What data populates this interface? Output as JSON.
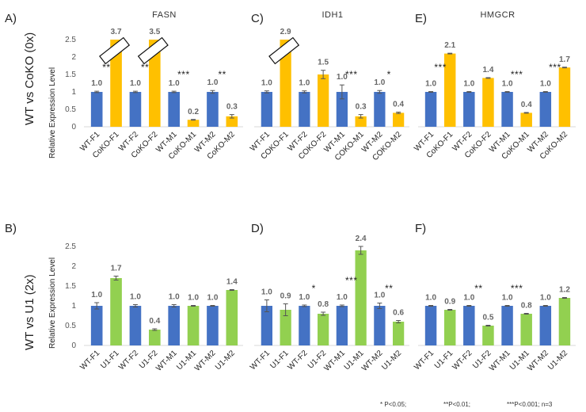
{
  "row_labels": [
    "WT vs CoKO (0x)",
    "WT vs U1 (2x)"
  ],
  "ylabel": "Relative Expression Level",
  "footnotes": [
    "* P<0.05;",
    "**P<0.01;",
    "***P<0.001; n=3"
  ],
  "colors": {
    "wt": "#4472C4",
    "coko": "#FFC000",
    "u1": "#92D050",
    "error": "#555555"
  },
  "chart_data": [
    {
      "type": "bar",
      "panel": "A)",
      "title": "FASN",
      "categories": [
        "WT-F1",
        "CoKO-F1",
        "WT-F2",
        "CoKO-F2",
        "WT-M1",
        "CoKO-M1",
        "WT-M2",
        "CoKO-M2"
      ],
      "values": [
        1.0,
        3.7,
        1.0,
        3.5,
        1.0,
        0.2,
        1.0,
        0.3
      ],
      "value_labels": [
        "1.0",
        "3.7",
        "1.0",
        "3.5",
        "1.0",
        "0.2",
        "1.0",
        "0.3"
      ],
      "errors": [
        0.02,
        0.03,
        0.02,
        0.05,
        0.02,
        0.01,
        0.04,
        0.05
      ],
      "groups": [
        "wt",
        "coko",
        "wt",
        "coko",
        "wt",
        "coko",
        "wt",
        "coko"
      ],
      "significance": [
        {
          "pair": 0,
          "stars": "**"
        },
        {
          "pair": 1,
          "stars": "**"
        },
        {
          "pair": 2,
          "stars": "***"
        },
        {
          "pair": 3,
          "stars": "**"
        }
      ],
      "ylim": [
        0,
        2.5
      ],
      "yticks": [
        "0",
        "0.5",
        "1",
        "1.5",
        "2",
        "2.5"
      ],
      "axis_broken": true
    },
    {
      "type": "bar",
      "panel": "C)",
      "title": "IDH1",
      "categories": [
        "WT-F1",
        "COKO-F1",
        "WT-F2",
        "COKO-F2",
        "WT-M1",
        "COKO-M1",
        "WT-M2",
        "COKO-M2"
      ],
      "values": [
        1.0,
        2.9,
        1.0,
        1.5,
        1.0,
        0.3,
        1.0,
        0.4
      ],
      "value_labels": [
        "1.0",
        "2.9",
        "1.0",
        "1.5",
        "1.0",
        "0.3",
        "1.0",
        "0.4"
      ],
      "errors": [
        0.03,
        0.0,
        0.03,
        0.12,
        0.2,
        0.05,
        0.04,
        0.02
      ],
      "groups": [
        "wt",
        "coko",
        "wt",
        "coko",
        "wt",
        "coko",
        "wt",
        "coko"
      ],
      "significance": [
        {
          "pair": 2,
          "stars": "***"
        },
        {
          "pair": 3,
          "stars": "*"
        }
      ],
      "ylim": [
        0,
        2.5
      ],
      "axis_broken": true
    },
    {
      "type": "bar",
      "panel": "E)",
      "title": "HMGCR",
      "categories": [
        "WT-F1",
        "CoKO-F1",
        "WT-F2",
        "CoKO-F2",
        "WT-M1",
        "CoKO-M1",
        "WT-M2",
        "CoKO-M2"
      ],
      "values": [
        1.0,
        2.1,
        1.0,
        1.4,
        1.0,
        0.4,
        1.0,
        1.7
      ],
      "value_labels": [
        "1.0",
        "2.1",
        "1.0",
        "1.4",
        "1.0",
        "0.4",
        "1.0",
        "1.7"
      ],
      "errors": [
        0.01,
        0.01,
        0.01,
        0.01,
        0.01,
        0.01,
        0.01,
        0.01
      ],
      "groups": [
        "wt",
        "coko",
        "wt",
        "coko",
        "wt",
        "coko",
        "wt",
        "coko"
      ],
      "significance": [
        {
          "pair": 0,
          "stars": "***"
        },
        {
          "pair": 2,
          "stars": "***"
        },
        {
          "pair": 3,
          "stars": "***"
        }
      ],
      "ylim": [
        0,
        2.5
      ]
    },
    {
      "type": "bar",
      "panel": "B)",
      "title": "",
      "categories": [
        "WT-F1",
        "U1-F1",
        "WT-F2",
        "U1-F2",
        "WT-M1",
        "U1-M1",
        "WT-M2",
        "U1-M2"
      ],
      "values": [
        1.0,
        1.7,
        1.0,
        0.4,
        1.0,
        1.0,
        1.0,
        1.4
      ],
      "value_labels": [
        "1.0",
        "1.7",
        "1.0",
        "0.4",
        "1.0",
        "1.0",
        "1.0",
        "1.4"
      ],
      "errors": [
        0.08,
        0.05,
        0.03,
        0.02,
        0.03,
        0.01,
        0.01,
        0.01
      ],
      "groups": [
        "wt",
        "u1",
        "wt",
        "u1",
        "wt",
        "u1",
        "wt",
        "u1"
      ],
      "significance": [],
      "ylim": [
        0,
        2.5
      ],
      "yticks": [
        "0",
        "0.5",
        "1",
        "1.5",
        "2",
        "2.5"
      ]
    },
    {
      "type": "bar",
      "panel": "D)",
      "title": "",
      "categories": [
        "WT-F1",
        "U1-F1",
        "WT-F2",
        "U1-F2",
        "WT-M1",
        "U1-M1",
        "WT-M2",
        "U1-M2"
      ],
      "values": [
        1.0,
        0.9,
        1.0,
        0.8,
        1.0,
        2.4,
        1.0,
        0.6
      ],
      "value_labels": [
        "1.0",
        "0.9",
        "1.0",
        "0.8",
        "1.0",
        "2.4",
        "1.0",
        "0.6"
      ],
      "errors": [
        0.15,
        0.15,
        0.02,
        0.04,
        0.02,
        0.1,
        0.07,
        0.03
      ],
      "groups": [
        "wt",
        "u1",
        "wt",
        "u1",
        "wt",
        "u1",
        "wt",
        "u1"
      ],
      "significance": [
        {
          "pair": 1,
          "stars": "*"
        },
        {
          "pair": 2,
          "stars": "***"
        },
        {
          "pair": 3,
          "stars": "**"
        }
      ],
      "ylim": [
        0,
        2.5
      ]
    },
    {
      "type": "bar",
      "panel": "F)",
      "title": "",
      "categories": [
        "WT-F1",
        "U1-F1",
        "WT-F2",
        "U1-F2",
        "WT-M1",
        "U1-M1",
        "WT-M2",
        "U1-M2"
      ],
      "values": [
        1.0,
        0.9,
        1.0,
        0.5,
        1.0,
        0.8,
        1.0,
        1.2
      ],
      "value_labels": [
        "1.0",
        "0.9",
        "1.0",
        "0.5",
        "1.0",
        "0.8",
        "1.0",
        "1.2"
      ],
      "errors": [
        0.01,
        0.01,
        0.01,
        0.01,
        0.01,
        0.01,
        0.01,
        0.01
      ],
      "groups": [
        "wt",
        "u1",
        "wt",
        "u1",
        "wt",
        "u1",
        "wt",
        "u1"
      ],
      "significance": [
        {
          "pair": 1,
          "stars": "**"
        },
        {
          "pair": 2,
          "stars": "***"
        }
      ],
      "ylim": [
        0,
        2.5
      ]
    }
  ]
}
